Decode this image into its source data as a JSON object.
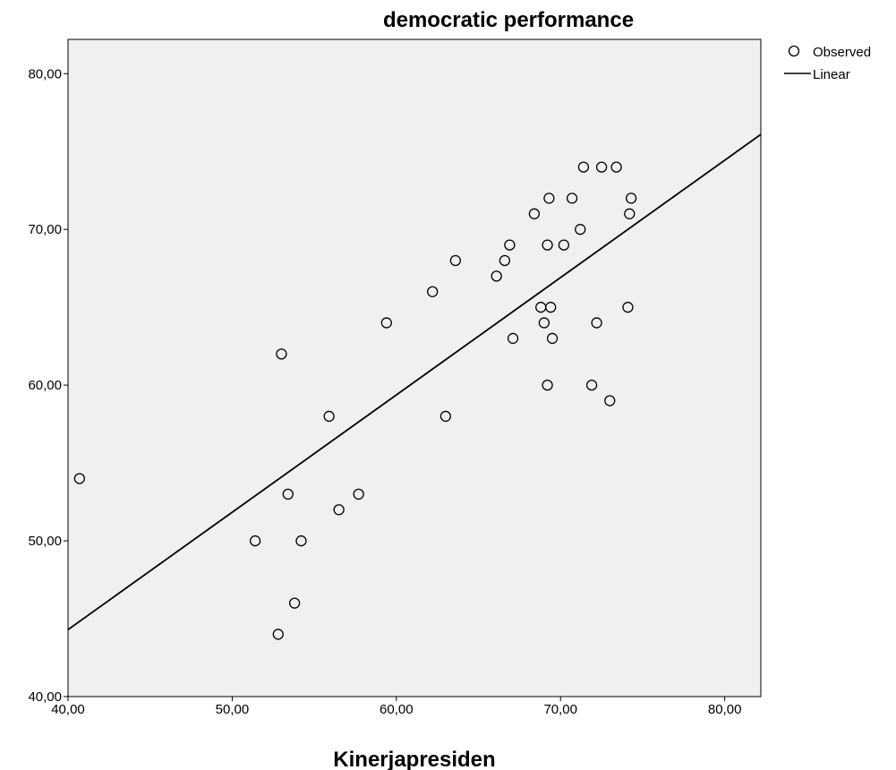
{
  "chart_data": {
    "type": "scatter",
    "title": "democratic performance",
    "xlabel": "Kinerjapresiden",
    "ylabel": "",
    "xlim": [
      40,
      82.2
    ],
    "ylim": [
      40,
      82.2
    ],
    "x_ticks": [
      40,
      50,
      60,
      70,
      80
    ],
    "y_ticks": [
      40,
      50,
      60,
      70,
      80
    ],
    "x_tick_labels": [
      "40,00",
      "50,00",
      "60,00",
      "70,00",
      "80,00"
    ],
    "y_tick_labels": [
      "40,00",
      "50,00",
      "60,00",
      "70,00",
      "80,00"
    ],
    "plot_background": "#f0f0f0",
    "grid": false,
    "legend": {
      "placement": "top-right-outside",
      "items": [
        {
          "label": "Observed",
          "marker": "open-circle"
        },
        {
          "label": "Linear",
          "marker": "line"
        }
      ]
    },
    "series": [
      {
        "name": "Observed",
        "points": [
          [
            40.7,
            54
          ],
          [
            51.4,
            50
          ],
          [
            52.8,
            44
          ],
          [
            53.0,
            62
          ],
          [
            53.4,
            53
          ],
          [
            53.8,
            46
          ],
          [
            54.2,
            50
          ],
          [
            55.9,
            58
          ],
          [
            56.5,
            52
          ],
          [
            57.7,
            53
          ],
          [
            59.4,
            64
          ],
          [
            62.2,
            66
          ],
          [
            63.0,
            58
          ],
          [
            63.6,
            68
          ],
          [
            66.1,
            67
          ],
          [
            66.6,
            68
          ],
          [
            66.9,
            69
          ],
          [
            67.1,
            63
          ],
          [
            68.4,
            71
          ],
          [
            68.8,
            65
          ],
          [
            69.0,
            64
          ],
          [
            69.2,
            69
          ],
          [
            69.2,
            60
          ],
          [
            69.3,
            72
          ],
          [
            69.4,
            65
          ],
          [
            69.5,
            63
          ],
          [
            70.2,
            69
          ],
          [
            70.7,
            72
          ],
          [
            71.2,
            70
          ],
          [
            71.4,
            74
          ],
          [
            71.9,
            60
          ],
          [
            72.2,
            64
          ],
          [
            72.5,
            74
          ],
          [
            73.0,
            59
          ],
          [
            73.4,
            74
          ],
          [
            74.1,
            65
          ],
          [
            74.2,
            71
          ],
          [
            74.3,
            72
          ]
        ]
      },
      {
        "name": "Linear",
        "line": [
          [
            40,
            44.3
          ],
          [
            82.2,
            76.1
          ]
        ]
      }
    ]
  }
}
